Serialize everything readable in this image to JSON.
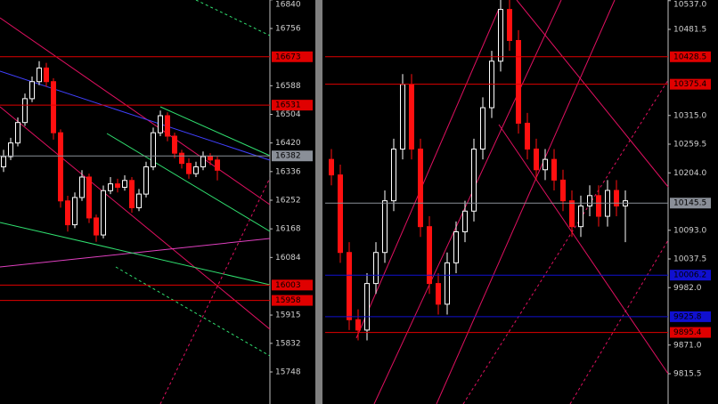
{
  "panels": [
    {
      "x0": 0,
      "price_axis": [
        16840,
        16756,
        16588,
        16504,
        16420,
        16336,
        16252,
        16168,
        16084,
        15915,
        15832,
        15748
      ],
      "levels": [
        {
          "value": 16673,
          "color": "#e00000"
        },
        {
          "value": 16531,
          "color": "#e00000"
        },
        {
          "value": 16382,
          "color": "#8a8f98"
        },
        {
          "value": 16003,
          "color": "#e00000"
        },
        {
          "value": 15958,
          "color": "#e00000"
        }
      ],
      "candles": [
        [
          16350,
          16400,
          16335,
          16380
        ],
        [
          16380,
          16435,
          16370,
          16420
        ],
        [
          16420,
          16495,
          16410,
          16480
        ],
        [
          16480,
          16565,
          16470,
          16550
        ],
        [
          16550,
          16615,
          16540,
          16600
        ],
        [
          16600,
          16660,
          16590,
          16640
        ],
        [
          16640,
          16655,
          16585,
          16600
        ],
        [
          16600,
          16610,
          16430,
          16450
        ],
        [
          16450,
          16460,
          16230,
          16250
        ],
        [
          16250,
          16265,
          16160,
          16180
        ],
        [
          16180,
          16275,
          16170,
          16260
        ],
        [
          16260,
          16340,
          16250,
          16320
        ],
        [
          16320,
          16330,
          16185,
          16200
        ],
        [
          16200,
          16210,
          16130,
          16150
        ],
        [
          16150,
          16295,
          16140,
          16280
        ],
        [
          16280,
          16320,
          16270,
          16300
        ],
        [
          16300,
          16315,
          16275,
          16290
        ],
        [
          16290,
          16325,
          16280,
          16310
        ],
        [
          16310,
          16320,
          16215,
          16230
        ],
        [
          16230,
          16285,
          16220,
          16270
        ],
        [
          16270,
          16365,
          16260,
          16350
        ],
        [
          16350,
          16465,
          16340,
          16450
        ],
        [
          16450,
          16515,
          16440,
          16500
        ],
        [
          16500,
          16510,
          16425,
          16440
        ],
        [
          16440,
          16450,
          16375,
          16390
        ],
        [
          16390,
          16400,
          16345,
          16360
        ],
        [
          16360,
          16375,
          16315,
          16330
        ],
        [
          16330,
          16365,
          16320,
          16350
        ],
        [
          16350,
          16395,
          16340,
          16380
        ],
        [
          16380,
          16390,
          16355,
          16370
        ],
        [
          16370,
          16380,
          16310,
          16340
        ]
      ]
    },
    {
      "x0": 365,
      "price_axis": [
        {
          "value": 10537.0,
          "label": "10537.0"
        },
        10481.5,
        {
          "value": 10315.0,
          "label": "10315.0"
        },
        10259.5,
        {
          "value": 10204.0,
          "label": "10204.0"
        },
        {
          "value": 10093.0,
          "label": "10093.0"
        },
        10037.5,
        {
          "value": 9982.0,
          "label": "9982.0"
        },
        {
          "value": 9871.0,
          "label": "9871.0"
        },
        9815.5
      ],
      "levels": [
        {
          "value": 10428.5,
          "color": "#e00000"
        },
        {
          "value": 10375.4,
          "color": "#e00000"
        },
        {
          "value": 10145.5,
          "color": "#8a8f98"
        },
        {
          "value": 10006.2,
          "color": "#1010d0"
        },
        {
          "value": 9925.8,
          "color": "#1010d0"
        },
        {
          "value": 9895.4,
          "color": "#e00000"
        }
      ],
      "candles": [
        [
          10230,
          10250,
          10180,
          10200
        ],
        [
          10200,
          10220,
          10030,
          10050
        ],
        [
          10050,
          10070,
          9900,
          9920
        ],
        [
          9920,
          9940,
          9880,
          9900
        ],
        [
          9900,
          10010,
          9880,
          9990
        ],
        [
          9990,
          10070,
          9970,
          10050
        ],
        [
          10050,
          10170,
          10030,
          10150
        ],
        [
          10150,
          10270,
          10130,
          10250
        ],
        [
          10250,
          10395,
          10230,
          10375
        ],
        [
          10375,
          10395,
          10230,
          10250
        ],
        [
          10250,
          10270,
          10080,
          10100
        ],
        [
          10100,
          10120,
          9970,
          9990
        ],
        [
          9990,
          10010,
          9930,
          9950
        ],
        [
          9950,
          10050,
          9930,
          10030
        ],
        [
          10030,
          10110,
          10010,
          10090
        ],
        [
          10090,
          10150,
          10070,
          10130
        ],
        [
          10130,
          10270,
          10110,
          10250
        ],
        [
          10250,
          10350,
          10230,
          10330
        ],
        [
          10330,
          10440,
          10310,
          10420
        ],
        [
          10420,
          10540,
          10400,
          10520
        ],
        [
          10520,
          10540,
          10440,
          10460
        ],
        [
          10460,
          10480,
          10280,
          10300
        ],
        [
          10300,
          10320,
          10230,
          10250
        ],
        [
          10250,
          10270,
          10190,
          10210
        ],
        [
          10210,
          10250,
          10190,
          10230
        ],
        [
          10230,
          10250,
          10170,
          10190
        ],
        [
          10190,
          10210,
          10130,
          10150
        ],
        [
          10150,
          10170,
          10080,
          10100
        ],
        [
          10100,
          10160,
          10080,
          10140
        ],
        [
          10140,
          10180,
          10120,
          10160
        ],
        [
          10160,
          10180,
          10100,
          10120
        ],
        [
          10120,
          10190,
          10100,
          10170
        ],
        [
          10170,
          10190,
          10120,
          10140
        ],
        [
          10140,
          10170,
          10070,
          10150
        ]
      ]
    }
  ]
}
